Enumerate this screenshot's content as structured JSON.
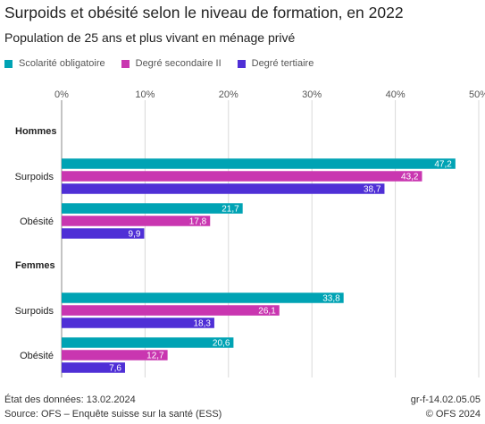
{
  "chart_data": {
    "type": "bar",
    "orientation": "horizontal",
    "title": "Surpoids et obésité selon le niveau de formation, en 2022",
    "subtitle": "Population de 25 ans et plus vivant en ménage privé",
    "xlim": [
      0,
      50
    ],
    "x_ticks": [
      "0%",
      "10%",
      "20%",
      "30%",
      "40%",
      "50%"
    ],
    "grid": true,
    "legend_position": "top-left",
    "series": [
      {
        "name": "Scolarité obligatoire",
        "color": "#00a3b4"
      },
      {
        "name": "Degré secondaire II",
        "color": "#c936b0"
      },
      {
        "name": "Degré tertiaire",
        "color": "#4f2fd6"
      }
    ],
    "groups": [
      {
        "label": "Hommes",
        "categories": [
          {
            "label": "Surpoids",
            "values": [
              47.2,
              43.2,
              38.7
            ],
            "value_labels": [
              "47,2",
              "43,2",
              "38,7"
            ]
          },
          {
            "label": "Obésité",
            "values": [
              21.7,
              17.8,
              9.9
            ],
            "value_labels": [
              "21,7",
              "17,8",
              "9,9"
            ]
          }
        ]
      },
      {
        "label": "Femmes",
        "categories": [
          {
            "label": "Surpoids",
            "values": [
              33.8,
              26.1,
              18.3
            ],
            "value_labels": [
              "33,8",
              "26,1",
              "18,3"
            ]
          },
          {
            "label": "Obésité",
            "values": [
              20.6,
              12.7,
              7.6
            ],
            "value_labels": [
              "20,6",
              "12,7",
              "7,6"
            ]
          }
        ]
      }
    ]
  },
  "footer": {
    "data_state": "État des données: 13.02.2024",
    "source": "Source: OFS – Enquête suisse sur la santé (ESS)",
    "code": "gr-f-14.02.05.05",
    "copyright": "© OFS 2024"
  }
}
